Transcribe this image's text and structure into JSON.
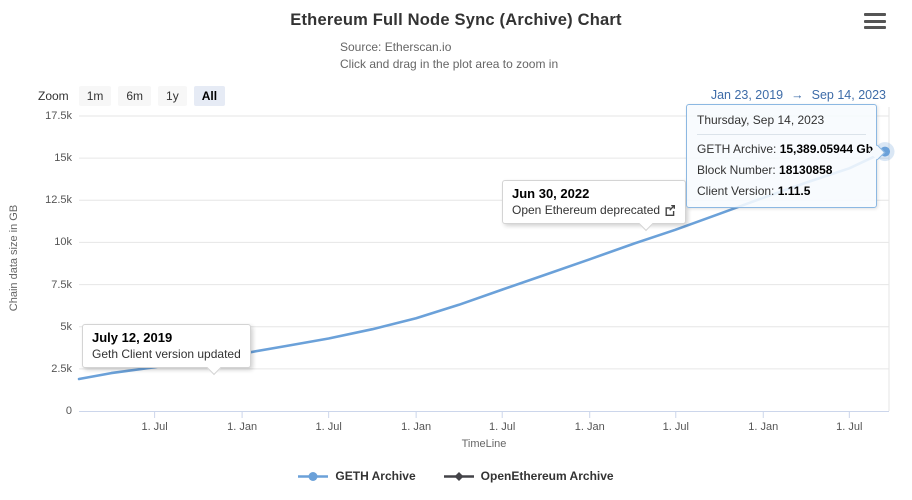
{
  "header": {
    "title": "Ethereum Full Node Sync (Archive) Chart",
    "subtitle_line1": "Source: Etherscan.io",
    "subtitle_line2": "Click and drag in the plot area to zoom in"
  },
  "range_selector": {
    "zoom_label": "Zoom",
    "buttons": [
      {
        "label": "1m",
        "selected": false
      },
      {
        "label": "6m",
        "selected": false
      },
      {
        "label": "1y",
        "selected": false
      },
      {
        "label": "All",
        "selected": true
      }
    ],
    "range_from": "Jan 23, 2019",
    "range_arrow": "→",
    "range_to": "Sep 14, 2023"
  },
  "tooltip": {
    "header": "Thursday, Sep 14, 2023",
    "rows": [
      {
        "label": "GETH Archive: ",
        "value": "15,389.05944 Gb"
      },
      {
        "label": "Block Number: ",
        "value": "18130858"
      },
      {
        "label": "Client Version: ",
        "value": "1.11.5"
      }
    ]
  },
  "annotations": [
    {
      "title": "Jun 30, 2022",
      "text": "Open Ethereum deprecated",
      "has_link_icon": true
    },
    {
      "title": "July 12, 2019",
      "text": "Geth Client version updated",
      "has_link_icon": false
    }
  ],
  "legend": [
    {
      "label": "GETH Archive",
      "color": "#6ba1d9",
      "marker": "circle"
    },
    {
      "label": "OpenEthereum Archive",
      "color": "#434348",
      "marker": "diamond"
    }
  ],
  "colors": {
    "series_blue": "#6ba1d9",
    "series_dark": "#434348",
    "grid": "#e6e6e6",
    "axis_line": "#ccd6eb",
    "range_text": "#3e6ca8",
    "tooltip_border": "#8cb8e2"
  },
  "chart_data": {
    "type": "line",
    "title": "Ethereum Full Node Sync (Archive) Chart",
    "subtitle": "Source: Etherscan.io",
    "xlabel": "TimeLine",
    "ylabel": "Chain data size in GB",
    "x_range": [
      "2019-01-23",
      "2023-09-14"
    ],
    "ylim": [
      0,
      17500
    ],
    "y_ticks": [
      0,
      2500,
      5000,
      7500,
      10000,
      12500,
      15000,
      17500
    ],
    "y_tick_labels": [
      "0",
      "2.5k",
      "5k",
      "7.5k",
      "10k",
      "12.5k",
      "15k",
      "17.5k"
    ],
    "x_ticks": [
      {
        "date": "2019-07-01",
        "label": "1. Jul"
      },
      {
        "date": "2020-01-01",
        "label": "1. Jan"
      },
      {
        "date": "2020-07-01",
        "label": "1. Jul"
      },
      {
        "date": "2021-01-01",
        "label": "1. Jan"
      },
      {
        "date": "2021-07-01",
        "label": "1. Jul"
      },
      {
        "date": "2022-01-01",
        "label": "1. Jan"
      },
      {
        "date": "2022-07-01",
        "label": "1. Jul"
      },
      {
        "date": "2023-01-01",
        "label": "1. Jan"
      },
      {
        "date": "2023-07-01",
        "label": "1. Jul"
      }
    ],
    "grid": "horizontal",
    "legend_position": "bottom",
    "series": [
      {
        "name": "GETH Archive",
        "color": "#6ba1d9",
        "unit": "Gb",
        "points": [
          [
            "2019-01-23",
            1900
          ],
          [
            "2019-04-01",
            2250
          ],
          [
            "2019-07-01",
            2600
          ],
          [
            "2019-10-01",
            3000
          ],
          [
            "2020-01-01",
            3400
          ],
          [
            "2020-04-01",
            3850
          ],
          [
            "2020-07-01",
            4300
          ],
          [
            "2020-10-01",
            4850
          ],
          [
            "2021-01-01",
            5500
          ],
          [
            "2021-04-01",
            6300
          ],
          [
            "2021-07-01",
            7200
          ],
          [
            "2021-10-01",
            8100
          ],
          [
            "2022-01-01",
            9000
          ],
          [
            "2022-04-01",
            9900
          ],
          [
            "2022-06-30",
            10750
          ],
          [
            "2022-10-01",
            11700
          ],
          [
            "2023-01-01",
            12650
          ],
          [
            "2023-04-01",
            13550
          ],
          [
            "2023-07-01",
            14400
          ],
          [
            "2023-09-14",
            15389.05944
          ]
        ],
        "hovered_point": {
          "date": "2023-09-14",
          "value": 15389.05944,
          "block_number": "18130858",
          "client_version": "1.11.5"
        }
      },
      {
        "name": "OpenEthereum Archive",
        "color": "#434348",
        "points": [],
        "note_visible_in_view": false
      }
    ]
  }
}
